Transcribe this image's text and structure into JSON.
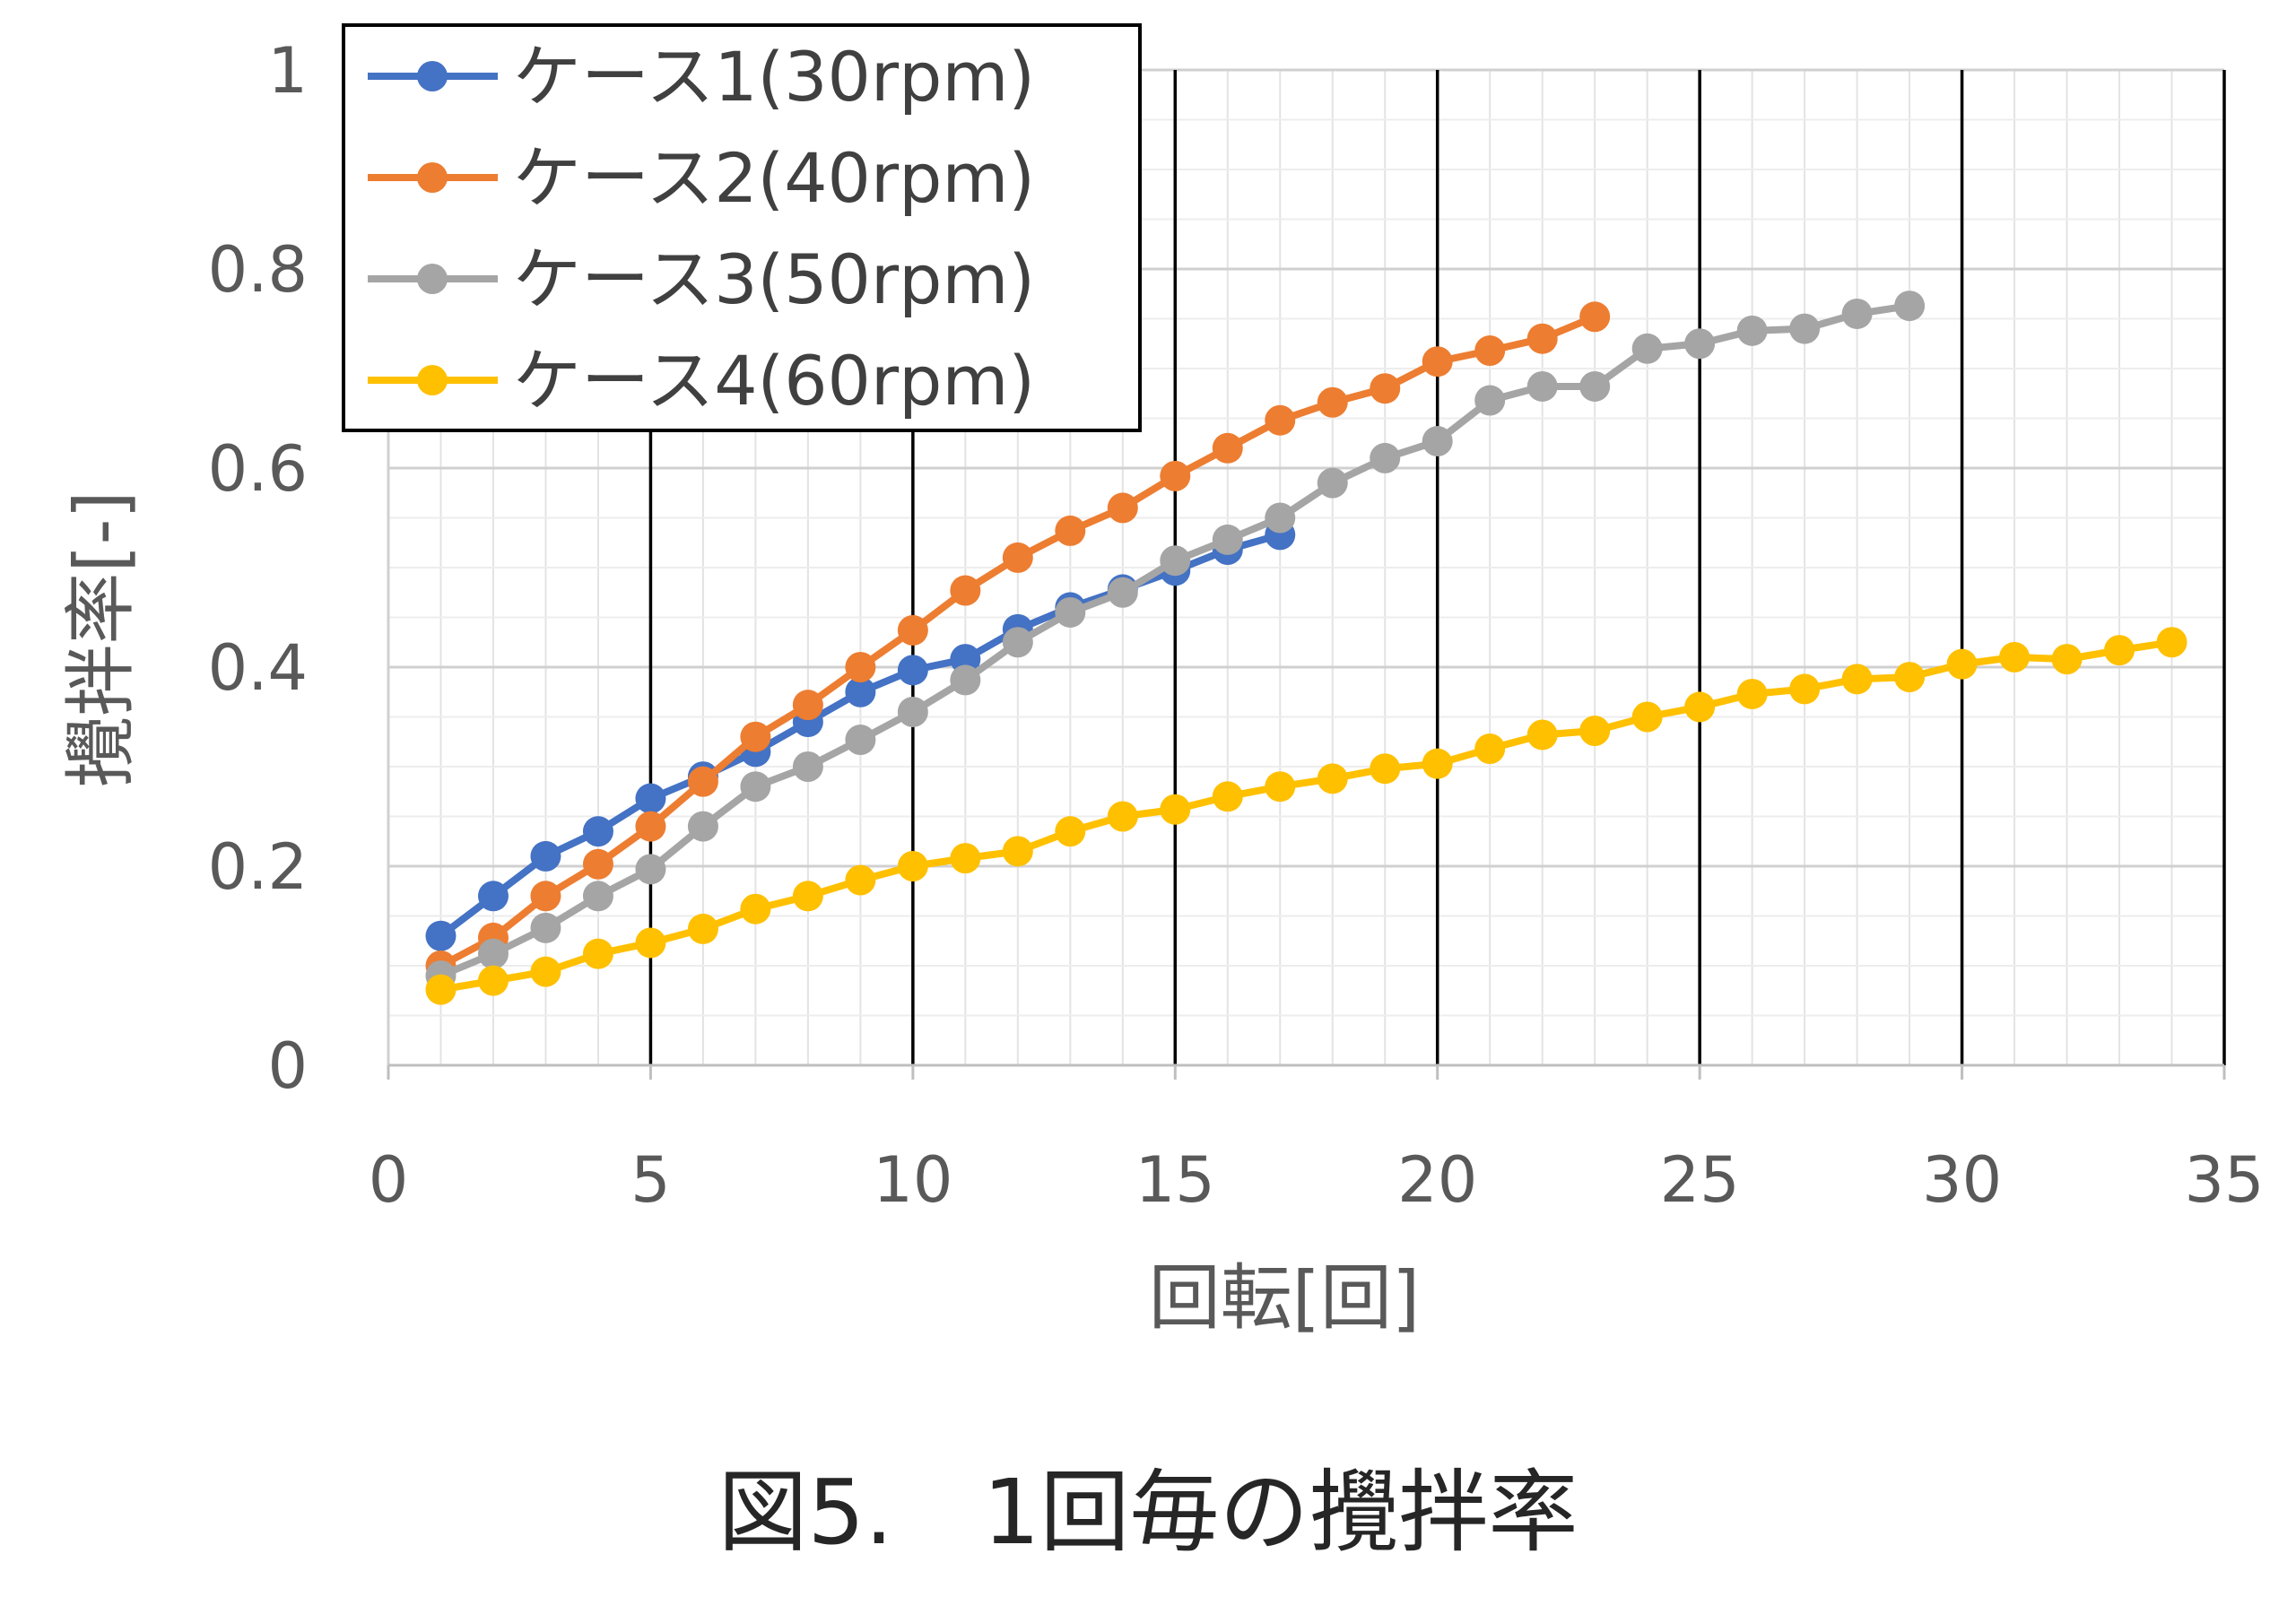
{
  "caption": "図5.　1回毎の攪拌率",
  "chart_data": {
    "type": "line",
    "xlabel": "回転[回]",
    "ylabel": "攪拌率[-]",
    "xlim": [
      0,
      35
    ],
    "ylim": [
      0,
      1
    ],
    "x_ticks": [
      0,
      5,
      10,
      15,
      20,
      25,
      30,
      35
    ],
    "y_ticks": [
      0,
      0.2,
      0.4,
      0.6,
      0.8,
      1
    ],
    "y_tick_labels": [
      "0",
      "0.2",
      "0.4",
      "0.6",
      "0.8",
      "1"
    ],
    "grid": "major and minor gridlines on both axes",
    "legend_position": "top-left",
    "series": [
      {
        "name": "ケース1(30rpm)",
        "color": "#4472C4",
        "x": [
          1,
          2,
          3,
          4,
          5,
          6,
          7,
          8,
          9,
          10,
          11,
          12,
          13,
          14,
          15,
          16,
          17
        ],
        "y": [
          0.13,
          0.17,
          0.21,
          0.235,
          0.268,
          0.29,
          0.315,
          0.345,
          0.375,
          0.397,
          0.408,
          0.438,
          0.46,
          0.478,
          0.497,
          0.518,
          0.533
        ]
      },
      {
        "name": "ケース2(40rpm)",
        "color": "#ED7D31",
        "x": [
          1,
          2,
          3,
          4,
          5,
          6,
          7,
          8,
          9,
          10,
          11,
          12,
          13,
          14,
          15,
          16,
          17,
          18,
          19,
          20,
          21,
          22,
          23
        ],
        "y": [
          0.1,
          0.128,
          0.17,
          0.202,
          0.24,
          0.285,
          0.33,
          0.362,
          0.4,
          0.437,
          0.477,
          0.51,
          0.537,
          0.56,
          0.592,
          0.62,
          0.648,
          0.666,
          0.68,
          0.707,
          0.718,
          0.73,
          0.752
        ]
      },
      {
        "name": "ケース3(50rpm)",
        "color": "#A5A5A5",
        "x": [
          1,
          2,
          3,
          4,
          5,
          6,
          7,
          8,
          9,
          10,
          11,
          12,
          13,
          14,
          15,
          16,
          17,
          18,
          19,
          20,
          21,
          22,
          23,
          24,
          25,
          26,
          27,
          28,
          29
        ],
        "y": [
          0.09,
          0.112,
          0.138,
          0.17,
          0.197,
          0.24,
          0.28,
          0.3,
          0.327,
          0.355,
          0.387,
          0.425,
          0.455,
          0.475,
          0.507,
          0.528,
          0.55,
          0.585,
          0.61,
          0.627,
          0.668,
          0.682,
          0.682,
          0.72,
          0.725,
          0.738,
          0.74,
          0.755,
          0.763
        ]
      },
      {
        "name": "ケース4(60rpm)",
        "color": "#FFC000",
        "x": [
          1,
          2,
          3,
          4,
          5,
          6,
          7,
          8,
          9,
          10,
          11,
          12,
          13,
          14,
          15,
          16,
          17,
          18,
          19,
          20,
          21,
          22,
          23,
          24,
          25,
          26,
          27,
          28,
          29,
          30,
          31,
          32,
          33,
          34
        ],
        "y": [
          0.076,
          0.085,
          0.094,
          0.112,
          0.123,
          0.137,
          0.157,
          0.17,
          0.186,
          0.2,
          0.208,
          0.215,
          0.235,
          0.25,
          0.257,
          0.27,
          0.28,
          0.288,
          0.298,
          0.303,
          0.318,
          0.332,
          0.336,
          0.35,
          0.36,
          0.373,
          0.378,
          0.388,
          0.39,
          0.403,
          0.41,
          0.408,
          0.417,
          0.425
        ]
      }
    ]
  }
}
